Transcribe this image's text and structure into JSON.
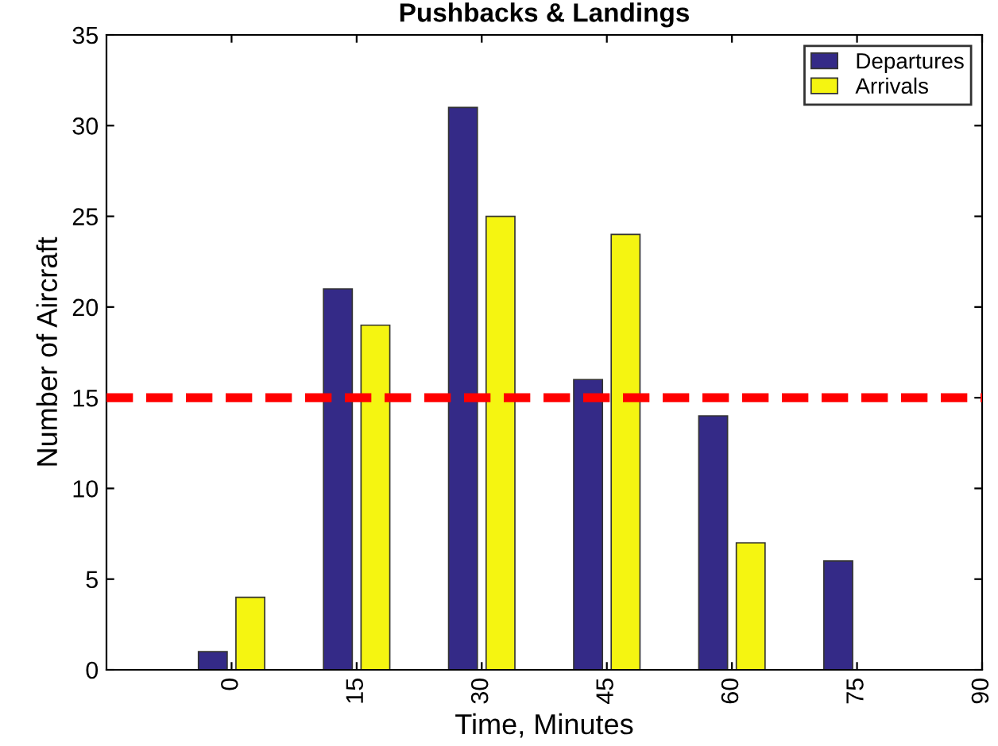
{
  "chart_data": {
    "type": "bar",
    "title": "Pushbacks & Landings",
    "xlabel": "Time, Minutes",
    "ylabel": "Number of Aircraft",
    "x": [
      0,
      15,
      30,
      45,
      60,
      75
    ],
    "series": [
      {
        "name": "Departures",
        "color": "#342a87",
        "values": [
          1,
          21,
          31,
          16,
          14,
          6
        ]
      },
      {
        "name": "Arrivals",
        "color": "#f5f511",
        "values": [
          4,
          19,
          25,
          24,
          7,
          0
        ]
      }
    ],
    "xlim": [
      -15,
      90
    ],
    "xticks": [
      0,
      15,
      30,
      45,
      60,
      75,
      90
    ],
    "ylim": [
      0,
      35
    ],
    "yticks": [
      0,
      5,
      10,
      15,
      20,
      25,
      30,
      35
    ],
    "ref_lines": [
      {
        "axis": "y",
        "value": 15,
        "color": "#ff0000",
        "line_style": "dashed"
      }
    ],
    "legend": "top right",
    "grid": false
  }
}
